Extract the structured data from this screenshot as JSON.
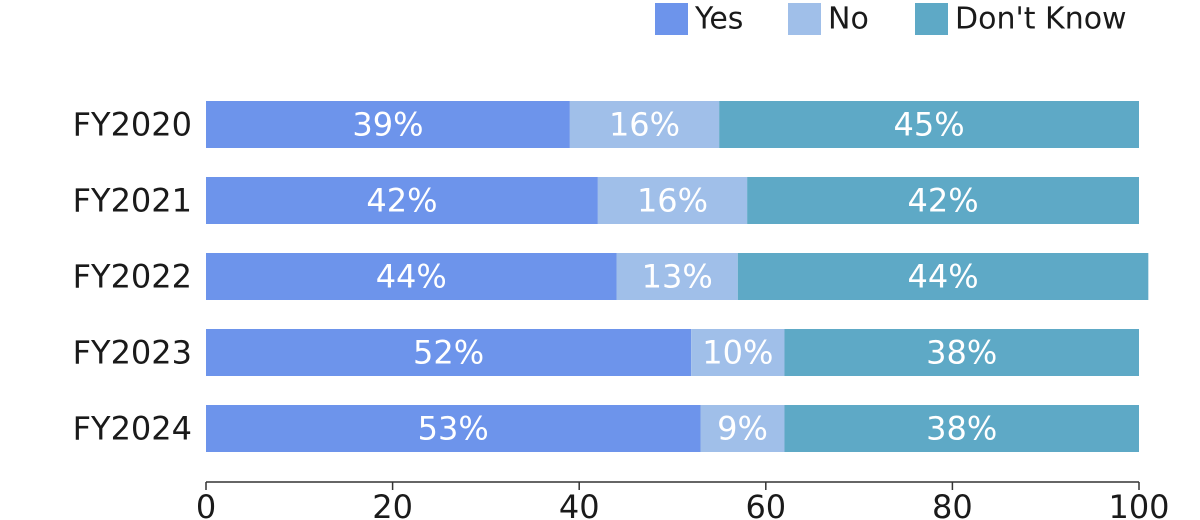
{
  "chart_data": {
    "type": "bar",
    "orientation": "horizontal",
    "stacked": true,
    "title": "",
    "xlabel": "",
    "ylabel": "",
    "categories": [
      "FY2020",
      "FY2021",
      "FY2022",
      "FY2023",
      "FY2024"
    ],
    "series": [
      {
        "name": "Yes",
        "color": "#6d94eb",
        "values": [
          39,
          42,
          44,
          52,
          53
        ],
        "labels": [
          "39%",
          "42%",
          "44%",
          "52%",
          "53%"
        ]
      },
      {
        "name": "No",
        "color": "#a0bfe9",
        "values": [
          16,
          16,
          13,
          10,
          9
        ],
        "labels": [
          "16%",
          "16%",
          "13%",
          "10%",
          "9%"
        ]
      },
      {
        "name": "Don't Know",
        "color": "#5ea9c6",
        "values": [
          45,
          42,
          44,
          38,
          38
        ],
        "labels": [
          "45%",
          "42%",
          "44%",
          "38%",
          "38%"
        ]
      }
    ],
    "xlim": [
      0,
      100
    ],
    "xticks": [
      0,
      20,
      40,
      60,
      80,
      100
    ],
    "xtick_labels": [
      "0",
      "20",
      "40",
      "60",
      "80",
      "100"
    ],
    "grid": false,
    "legend_position": "top-right"
  }
}
